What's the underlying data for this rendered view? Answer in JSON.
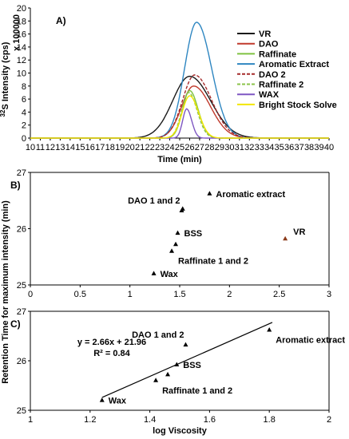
{
  "chart_data": [
    {
      "panel_label": "A)",
      "type": "line",
      "xlabel": "Time (min)",
      "ylabel": "32S Intensity (cps)",
      "ylabel_sup": "32",
      "ylabel_rest": "S Intensity (cps)",
      "scale_note": "x 100000",
      "xlim": [
        10,
        40
      ],
      "ylim": [
        0,
        20
      ],
      "xticks": [
        10,
        11,
        12,
        13,
        14,
        15,
        16,
        17,
        18,
        19,
        20,
        21,
        22,
        23,
        24,
        25,
        26,
        27,
        28,
        29,
        30,
        31,
        32,
        33,
        34,
        35,
        36,
        37,
        38,
        39,
        40
      ],
      "yticks": [
        0,
        2,
        4,
        6,
        8,
        10,
        12,
        14,
        16,
        18,
        20
      ],
      "grid": false,
      "legend_position": "right",
      "series": [
        {
          "name": "VR",
          "color": "#1a1a1a",
          "dash": "solid",
          "peak_x": 26.0,
          "peak_y": 9.5,
          "sigma_left": 1.7,
          "sigma_right": 2.1
        },
        {
          "name": "DAO",
          "color": "#c0392b",
          "dash": "solid",
          "peak_x": 26.4,
          "peak_y": 8.0,
          "sigma_left": 1.2,
          "sigma_right": 1.7
        },
        {
          "name": "Raffinate",
          "color": "#7fc241",
          "dash": "solid",
          "peak_x": 26.0,
          "peak_y": 7.3,
          "sigma_left": 0.7,
          "sigma_right": 0.85
        },
        {
          "name": "Aromatic Extract",
          "color": "#2e86c1",
          "dash": "solid",
          "peak_x": 26.7,
          "peak_y": 17.8,
          "sigma_left": 1.2,
          "sigma_right": 1.5
        },
        {
          "name": "DAO 2",
          "color": "#a52a2a",
          "dash": "dashed",
          "peak_x": 26.5,
          "peak_y": 9.7,
          "sigma_left": 1.2,
          "sigma_right": 1.7
        },
        {
          "name": "Raffinate 2",
          "color": "#8bc34a",
          "dash": "dashed",
          "peak_x": 25.9,
          "peak_y": 7.0,
          "sigma_left": 0.7,
          "sigma_right": 0.85
        },
        {
          "name": "WAX",
          "color": "#7e57c2",
          "dash": "solid",
          "peak_x": 25.7,
          "peak_y": 4.5,
          "sigma_left": 0.4,
          "sigma_right": 0.5
        },
        {
          "name": "Bright Stock Solve",
          "color": "#f2e600",
          "dash": "solid",
          "peak_x": 26.0,
          "peak_y": 6.5,
          "sigma_left": 0.75,
          "sigma_right": 0.9
        }
      ]
    },
    {
      "panel_label": "B)",
      "type": "scatter",
      "xlim": [
        0,
        3
      ],
      "ylim": [
        25,
        27
      ],
      "xticks": [
        0,
        0.5,
        1,
        1.5,
        2,
        2.5,
        3
      ],
      "xtick_labels": [
        "0",
        "0.5",
        "1",
        "1.5",
        "2",
        "2.5",
        "3"
      ],
      "yticks": [
        25,
        26,
        27
      ],
      "points": [
        {
          "label": "Aromatic extract",
          "x": 1.8,
          "y": 26.62,
          "color": "#000000",
          "label_color": "#000000",
          "label_anchor": "right"
        },
        {
          "label": "DAO 1 and 2",
          "x": 1.52,
          "y": 26.32,
          "color": "#000000",
          "label_color": "#000000",
          "label_anchor": "above-left"
        },
        {
          "label": "",
          "x": 1.53,
          "y": 26.35,
          "color": "#000000"
        },
        {
          "label": "BSS",
          "x": 1.48,
          "y": 25.92,
          "color": "#000000",
          "label_color": "#000000",
          "label_anchor": "right"
        },
        {
          "label": "",
          "x": 1.46,
          "y": 25.72,
          "color": "#000000"
        },
        {
          "label": "Raffinate 1 and 2",
          "x": 1.42,
          "y": 25.6,
          "color": "#000000",
          "label_color": "#000000",
          "label_anchor": "below-right"
        },
        {
          "label": "Wax",
          "x": 1.24,
          "y": 25.2,
          "color": "#000000",
          "label_color": "#000000",
          "label_anchor": "right"
        },
        {
          "label": "VR",
          "x": 2.56,
          "y": 25.82,
          "color": "#8b3a1a",
          "label_color": "#c0392b",
          "label_anchor": "above-right"
        }
      ]
    },
    {
      "panel_label": "C)",
      "type": "scatter",
      "xlabel": "log Viscosity",
      "xlim": [
        1,
        2
      ],
      "ylim": [
        25,
        27
      ],
      "xticks": [
        1,
        1.2,
        1.4,
        1.6,
        1.8,
        2
      ],
      "xtick_labels": [
        "1",
        "1.2",
        "1.4",
        "1.6",
        "1.8",
        "2"
      ],
      "yticks": [
        25,
        26,
        27
      ],
      "points": [
        {
          "label": "Aromatic extract",
          "x": 1.8,
          "y": 26.62,
          "label_anchor": "below-right"
        },
        {
          "label": "DAO 1 and 2",
          "x": 1.52,
          "y": 26.32,
          "label_anchor": "above-left"
        },
        {
          "label": "BSS",
          "x": 1.49,
          "y": 25.92,
          "label_anchor": "right"
        },
        {
          "label": "",
          "x": 1.46,
          "y": 25.72
        },
        {
          "label": "Raffinate 1 and 2",
          "x": 1.42,
          "y": 25.6,
          "label_anchor": "below-right"
        },
        {
          "label": "Wax",
          "x": 1.24,
          "y": 25.2,
          "label_anchor": "right"
        }
      ],
      "trendline": {
        "slope": 2.66,
        "intercept": 21.96,
        "x_from": 1.24,
        "x_to": 1.81
      },
      "equation_text": "y = 2.66x + 21.96",
      "r2_text": "R² = 0.84"
    }
  ],
  "shared_ylabel": "Retention Time for maximum intensity (min)"
}
